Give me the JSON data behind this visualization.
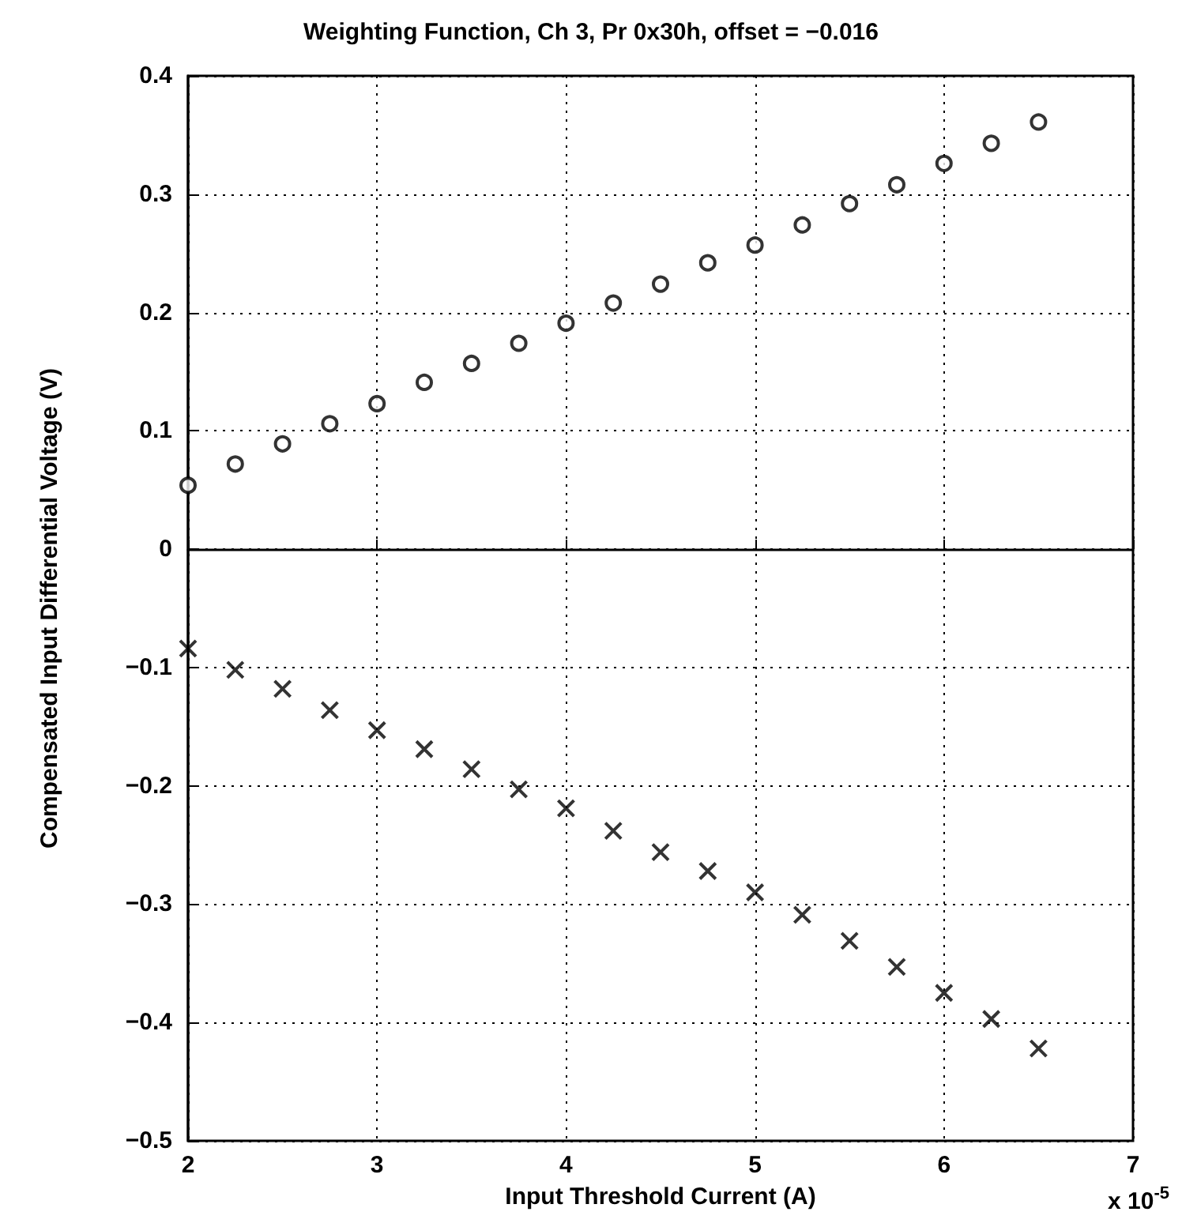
{
  "chart_data": {
    "type": "scatter",
    "title": "Weighting Function, Ch 3, Pr 0x30h, offset = −0.016",
    "xlabel": "Input Threshold Current (A)",
    "ylabel": "Compensated Input Differential Voltage (V)",
    "annotations": [
      "x 10$^{-5}$"
    ],
    "x": [
      2,
      2.25,
      2.5,
      2.75,
      3,
      3.25,
      3.5,
      3.75,
      4,
      4.25,
      4.5,
      4.75,
      5,
      5.25,
      5.5,
      5.75,
      6,
      6.25,
      6.5
    ],
    "series": [
      {
        "color": "#000000",
        "marker": "circle",
        "values": [
          0.054,
          0.072,
          0.089,
          0.106,
          0.123,
          0.141,
          0.157,
          0.174,
          0.191,
          0.208,
          0.224,
          0.242,
          0.257,
          0.274,
          0.292,
          0.308,
          0.326,
          0.343,
          0.361
        ]
      },
      {
        "color": "#000000",
        "marker": "cross",
        "values": [
          -0.084,
          -0.102,
          -0.118,
          -0.136,
          -0.153,
          -0.169,
          -0.186,
          -0.203,
          -0.219,
          -0.238,
          -0.256,
          -0.272,
          -0.29,
          -0.309,
          -0.331,
          -0.353,
          -0.375,
          -0.397,
          -0.422
        ]
      }
    ],
    "xlim": [
      2,
      7
    ],
    "xticks": [
      2,
      3,
      4,
      5,
      6,
      7
    ],
    "ylim": [
      -0.5,
      0.4
    ],
    "yticks": [
      -0.5,
      -0.4,
      -0.3,
      -0.2,
      -0.1,
      0,
      0.1,
      0.2,
      0.3,
      0.4
    ],
    "grid": true
  }
}
